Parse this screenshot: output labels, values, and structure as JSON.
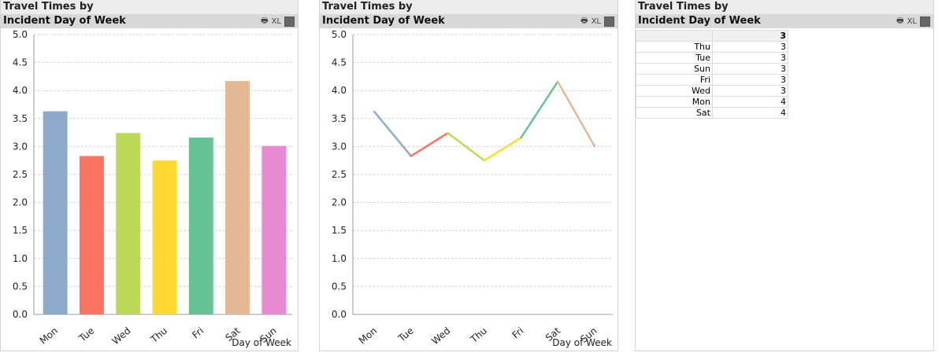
{
  "panels": [
    {
      "title": "Travel Times by",
      "subtitle": "Incident Day of Week",
      "icons": [
        "print-icon",
        "xl-icon",
        "chart-switch-icon"
      ],
      "icon_labels": {
        "xl": "XL"
      }
    },
    {
      "title": "Travel Times by",
      "subtitle": "Incident Day of Week",
      "icons": [
        "print-icon",
        "xl-icon",
        "minimize-icon"
      ],
      "icon_labels": {
        "xl": "XL"
      }
    },
    {
      "title": "Travel Times by",
      "subtitle": "Incident Day of Week",
      "icons": [
        "print-icon",
        "xl-icon",
        "chart-switch-icon"
      ],
      "icon_labels": {
        "xl": "XL"
      }
    }
  ],
  "colors": {
    "Mon": "#8eaacb",
    "Tue": "#fb7362",
    "Wed": "#bbd955",
    "Thu": "#ffd932",
    "Fri": "#66c395",
    "Sat": "#e4b795",
    "Sun": "#e88ad1"
  },
  "chart_data": [
    {
      "type": "bar",
      "categories": [
        "Mon",
        "Tue",
        "Wed",
        "Thu",
        "Fri",
        "Sat",
        "Sun"
      ],
      "values": [
        3.63,
        2.83,
        3.24,
        2.75,
        3.16,
        4.17,
        3.01
      ],
      "xlabel": "Day of Week",
      "ylabel": "",
      "ylim": [
        0,
        5
      ],
      "yticks": [
        "0.0",
        "0.5",
        "1.0",
        "1.5",
        "2.0",
        "2.5",
        "3.0",
        "3.5",
        "4.0",
        "4.5",
        "5.0"
      ],
      "grid": true
    },
    {
      "type": "line",
      "categories": [
        "Mon",
        "Tue",
        "Wed",
        "Thu",
        "Fri",
        "Sat",
        "Sun"
      ],
      "values": [
        3.62,
        2.83,
        3.24,
        2.75,
        3.16,
        4.16,
        3.01
      ],
      "xlabel": "Day of Week",
      "ylabel": "",
      "ylim": [
        0,
        5
      ],
      "yticks": [
        "0.0",
        "0.5",
        "1.0",
        "1.5",
        "2.0",
        "2.5",
        "3.0",
        "3.5",
        "4.0",
        "4.5",
        "5.0"
      ],
      "grid": true
    },
    {
      "type": "table",
      "header": [
        "",
        "3"
      ],
      "rows": [
        [
          "Thu",
          "3"
        ],
        [
          "Tue",
          "3"
        ],
        [
          "Sun",
          "3"
        ],
        [
          "Fri",
          "3"
        ],
        [
          "Wed",
          "3"
        ],
        [
          "Mon",
          "4"
        ],
        [
          "Sat",
          "4"
        ]
      ]
    }
  ]
}
